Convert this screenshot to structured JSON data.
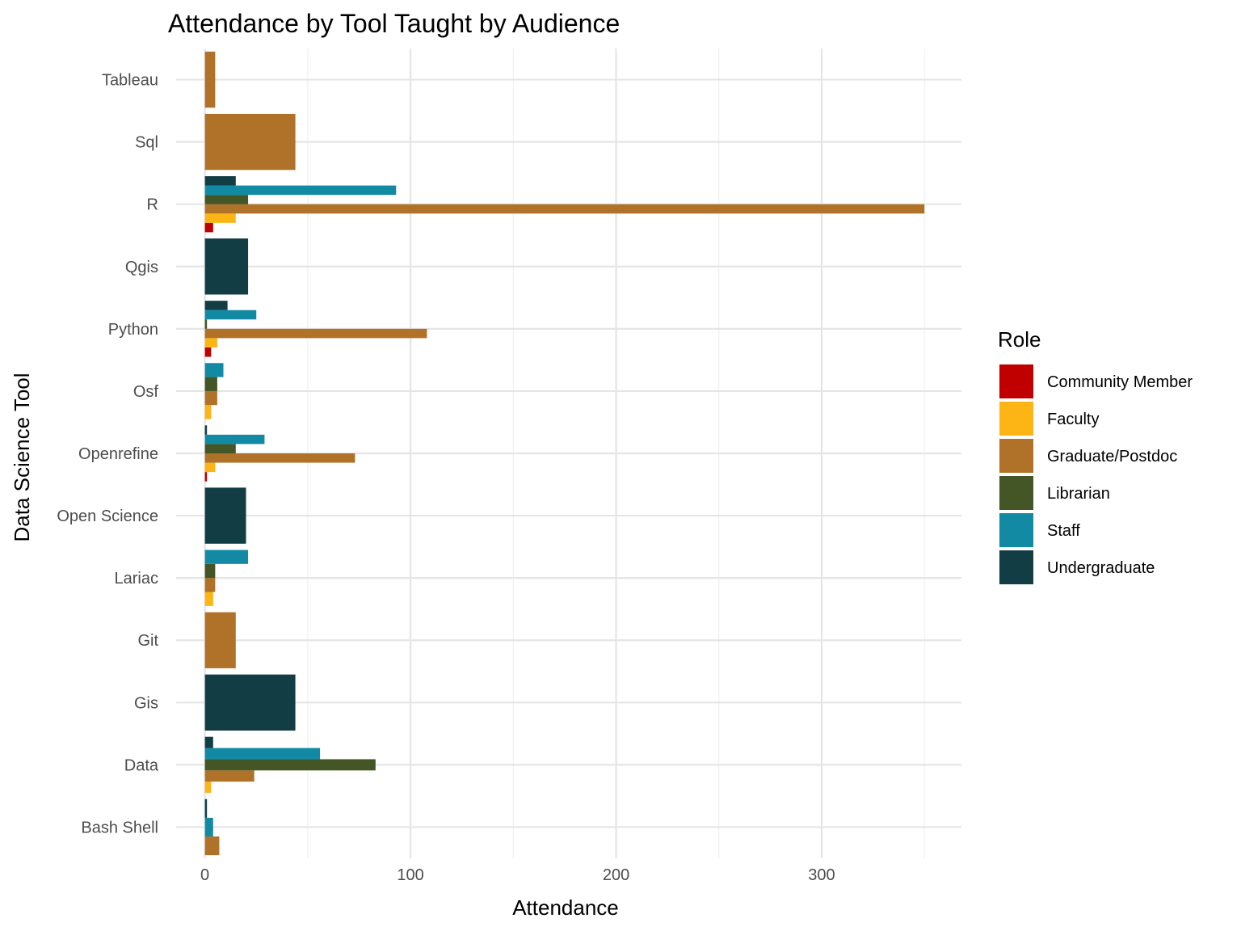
{
  "chart_data": {
    "type": "bar",
    "orientation": "horizontal",
    "title": "Attendance by Tool Taught by Audience",
    "xlabel": "Attendance",
    "ylabel": "Data Science Tool",
    "xlim": [
      -14,
      368
    ],
    "x_ticks": [
      0,
      100,
      200,
      300
    ],
    "x_minor_ticks": [
      50,
      150,
      250,
      350
    ],
    "grid": true,
    "legend_title": "Role",
    "legend_position": "right",
    "categories": [
      "Bash Shell",
      "Data",
      "Gis",
      "Git",
      "Lariac",
      "Open Science",
      "Openrefine",
      "Osf",
      "Python",
      "Qgis",
      "R",
      "Sql",
      "Tableau"
    ],
    "series": [
      {
        "name": "Community Member",
        "color": "#C00000",
        "values": [
          null,
          null,
          null,
          null,
          null,
          null,
          1,
          null,
          3,
          null,
          4,
          null,
          null
        ]
      },
      {
        "name": "Faculty",
        "color": "#FDB515",
        "values": [
          null,
          3,
          null,
          null,
          4,
          null,
          5,
          3,
          6,
          null,
          15,
          null,
          null
        ]
      },
      {
        "name": "Graduate/Postdoc",
        "color": "#B07228",
        "values": [
          7,
          24,
          null,
          15,
          5,
          null,
          73,
          6,
          108,
          null,
          350,
          44,
          5
        ]
      },
      {
        "name": "Librarian",
        "color": "#445526",
        "values": [
          null,
          83,
          null,
          null,
          5,
          null,
          15,
          6,
          1,
          null,
          21,
          null,
          null
        ]
      },
      {
        "name": "Staff",
        "color": "#138AA3",
        "values": [
          4,
          56,
          null,
          null,
          21,
          null,
          29,
          9,
          25,
          null,
          93,
          null,
          null
        ]
      },
      {
        "name": "Undergraduate",
        "color": "#123D44",
        "values": [
          1,
          4,
          44,
          null,
          null,
          20,
          1,
          null,
          11,
          21,
          15,
          null,
          null
        ]
      }
    ]
  }
}
